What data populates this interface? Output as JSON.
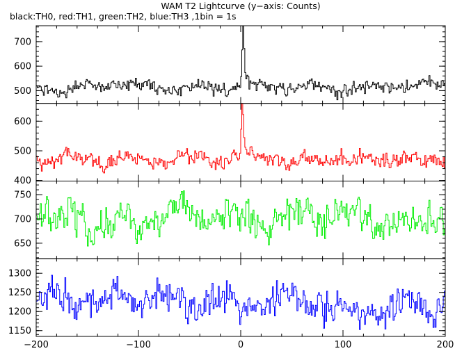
{
  "title": "WAM T2 Lightcurve (y−axis: Counts)",
  "subtitle": "black:TH0, red:TH1, green:TH2, blue:TH3 ,1bin = 1s",
  "chart_data": {
    "type": "line",
    "x_range": [
      -200,
      200
    ],
    "x_ticks": [
      "−200",
      "−100",
      "0",
      "100",
      "200"
    ],
    "x_tick_values": [
      -200,
      -100,
      0,
      100,
      200
    ],
    "bin_size_s": 1,
    "series": [
      {
        "name": "TH0",
        "color": "#000000",
        "ylim": [
          448,
          765
        ],
        "yticks": [
          500,
          600,
          700
        ],
        "baseline": 515,
        "noise": 22,
        "wave_amp": 14,
        "peak": 760,
        "peak_x": 2
      },
      {
        "name": "TH1",
        "color": "#ff0000",
        "ylim": [
          398,
          660
        ],
        "yticks": [
          400,
          500,
          600
        ],
        "baseline": 470,
        "noise": 22,
        "wave_amp": 10,
        "peak": 650,
        "peak_x": 1
      },
      {
        "name": "TH2",
        "color": "#00ee00",
        "ylim": [
          618,
          778
        ],
        "yticks": [
          650,
          700,
          750
        ],
        "baseline": 700,
        "noise": 28,
        "wave_amp": 14,
        "peak": 0,
        "peak_x": 0
      },
      {
        "name": "TH3",
        "color": "#0000ff",
        "ylim": [
          1135,
          1338
        ],
        "yticks": [
          1150,
          1200,
          1250,
          1300
        ],
        "baseline": 1240,
        "noise": 35,
        "wave_amp": 15,
        "trend": -30,
        "peak": 0,
        "peak_x": 0
      }
    ]
  }
}
